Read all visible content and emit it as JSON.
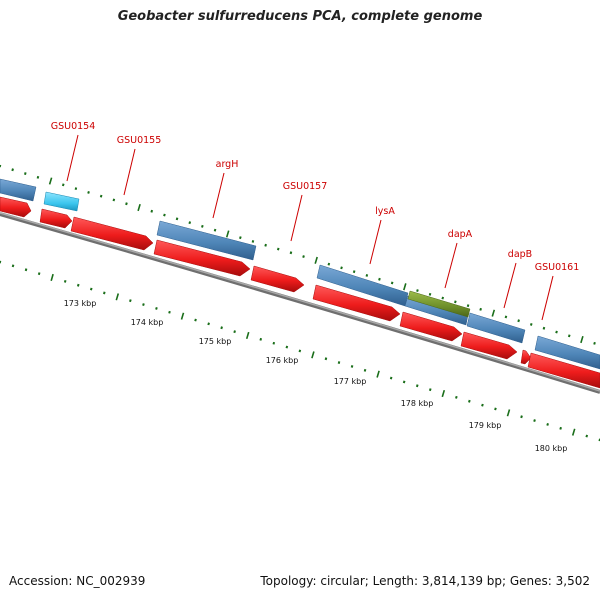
{
  "title": "Geobacter sulfurreducens PCA, complete genome",
  "footer": {
    "accession": "Accession: NC_002939",
    "stats": "Topology: circular; Length: 3,814,139 bp; Genes: 3,502"
  },
  "colors": {
    "forward_cds": "#4f86b8",
    "reverse_cds": "#ee1c1c",
    "highlight_cds": "#3cc6ee",
    "rna_cds": "#6e8f2a",
    "backbone": "#8a8a8a",
    "ticks": "#1a6e1a",
    "label": "#cc0000"
  },
  "scale": {
    "labels": [
      "173 kbp",
      "174 kbp",
      "175 kbp",
      "176 kbp",
      "177 kbp",
      "178 kbp",
      "179 kbp",
      "180 kbp"
    ]
  },
  "gene_labels": [
    "GSU0154",
    "GSU0155",
    "argH",
    "GSU0157",
    "lysA",
    "dapA",
    "dapB",
    "GSU0161"
  ]
}
